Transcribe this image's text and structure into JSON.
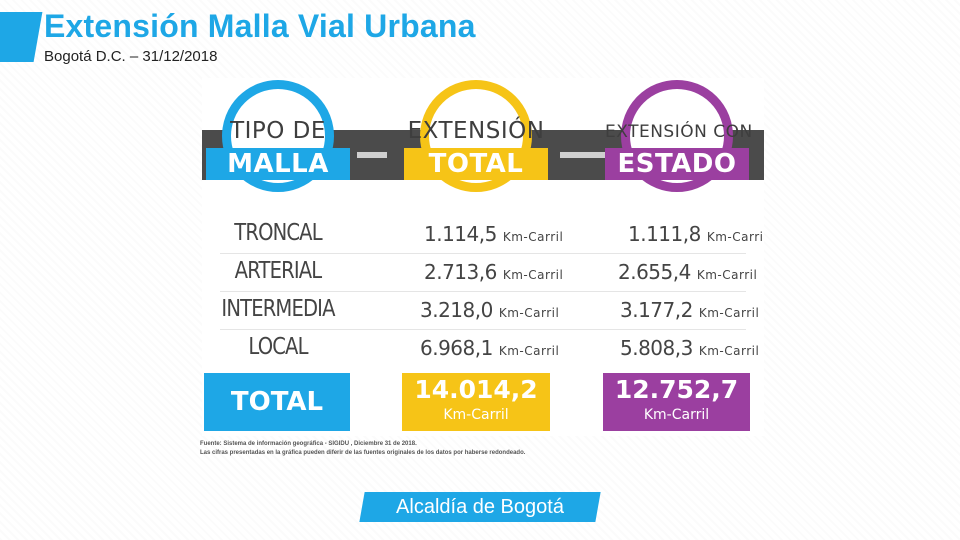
{
  "header": {
    "title": "Extensión Malla Vial Urbana",
    "subtitle": "Bogotá D.C. – 31/12/2018"
  },
  "infographic": {
    "headers": [
      {
        "top": "TIPO DE",
        "banner": "MALLA",
        "color": "#1ea7e6"
      },
      {
        "top": "EXTENSIÓN",
        "banner": "TOTAL",
        "color": "#f6c417"
      },
      {
        "top": "EXTENSIÓN CON",
        "banner": "ESTADO",
        "color": "#9b3fa0"
      }
    ],
    "unit": "Km-Carril",
    "rows": [
      {
        "category": "TRONCAL",
        "total": "1.114,5",
        "con_estado": "1.111,8"
      },
      {
        "category": "ARTERIAL",
        "total": "2.713,6",
        "con_estado": "2.655,4"
      },
      {
        "category": "INTERMEDIA",
        "total": "3.218,0",
        "con_estado": "3.177,2"
      },
      {
        "category": "LOCAL",
        "total": "6.968,1",
        "con_estado": "5.808,3"
      }
    ],
    "totals": {
      "label": "TOTAL",
      "total": "14.014,2",
      "con_estado": "12.752,7",
      "unit": "Km-Carril"
    }
  },
  "footnote": {
    "line1": "Fuente: Sistema de información geográfica - SIGIDU , Diciembre 31 de 2018.",
    "line2": "Las cifras presentadas en la gráfica pueden diferir de las fuentes originales de los datos por haberse redondeado."
  },
  "logo": {
    "text": "Alcaldía de Bogotá",
    "color": "#1ea7e6"
  }
}
